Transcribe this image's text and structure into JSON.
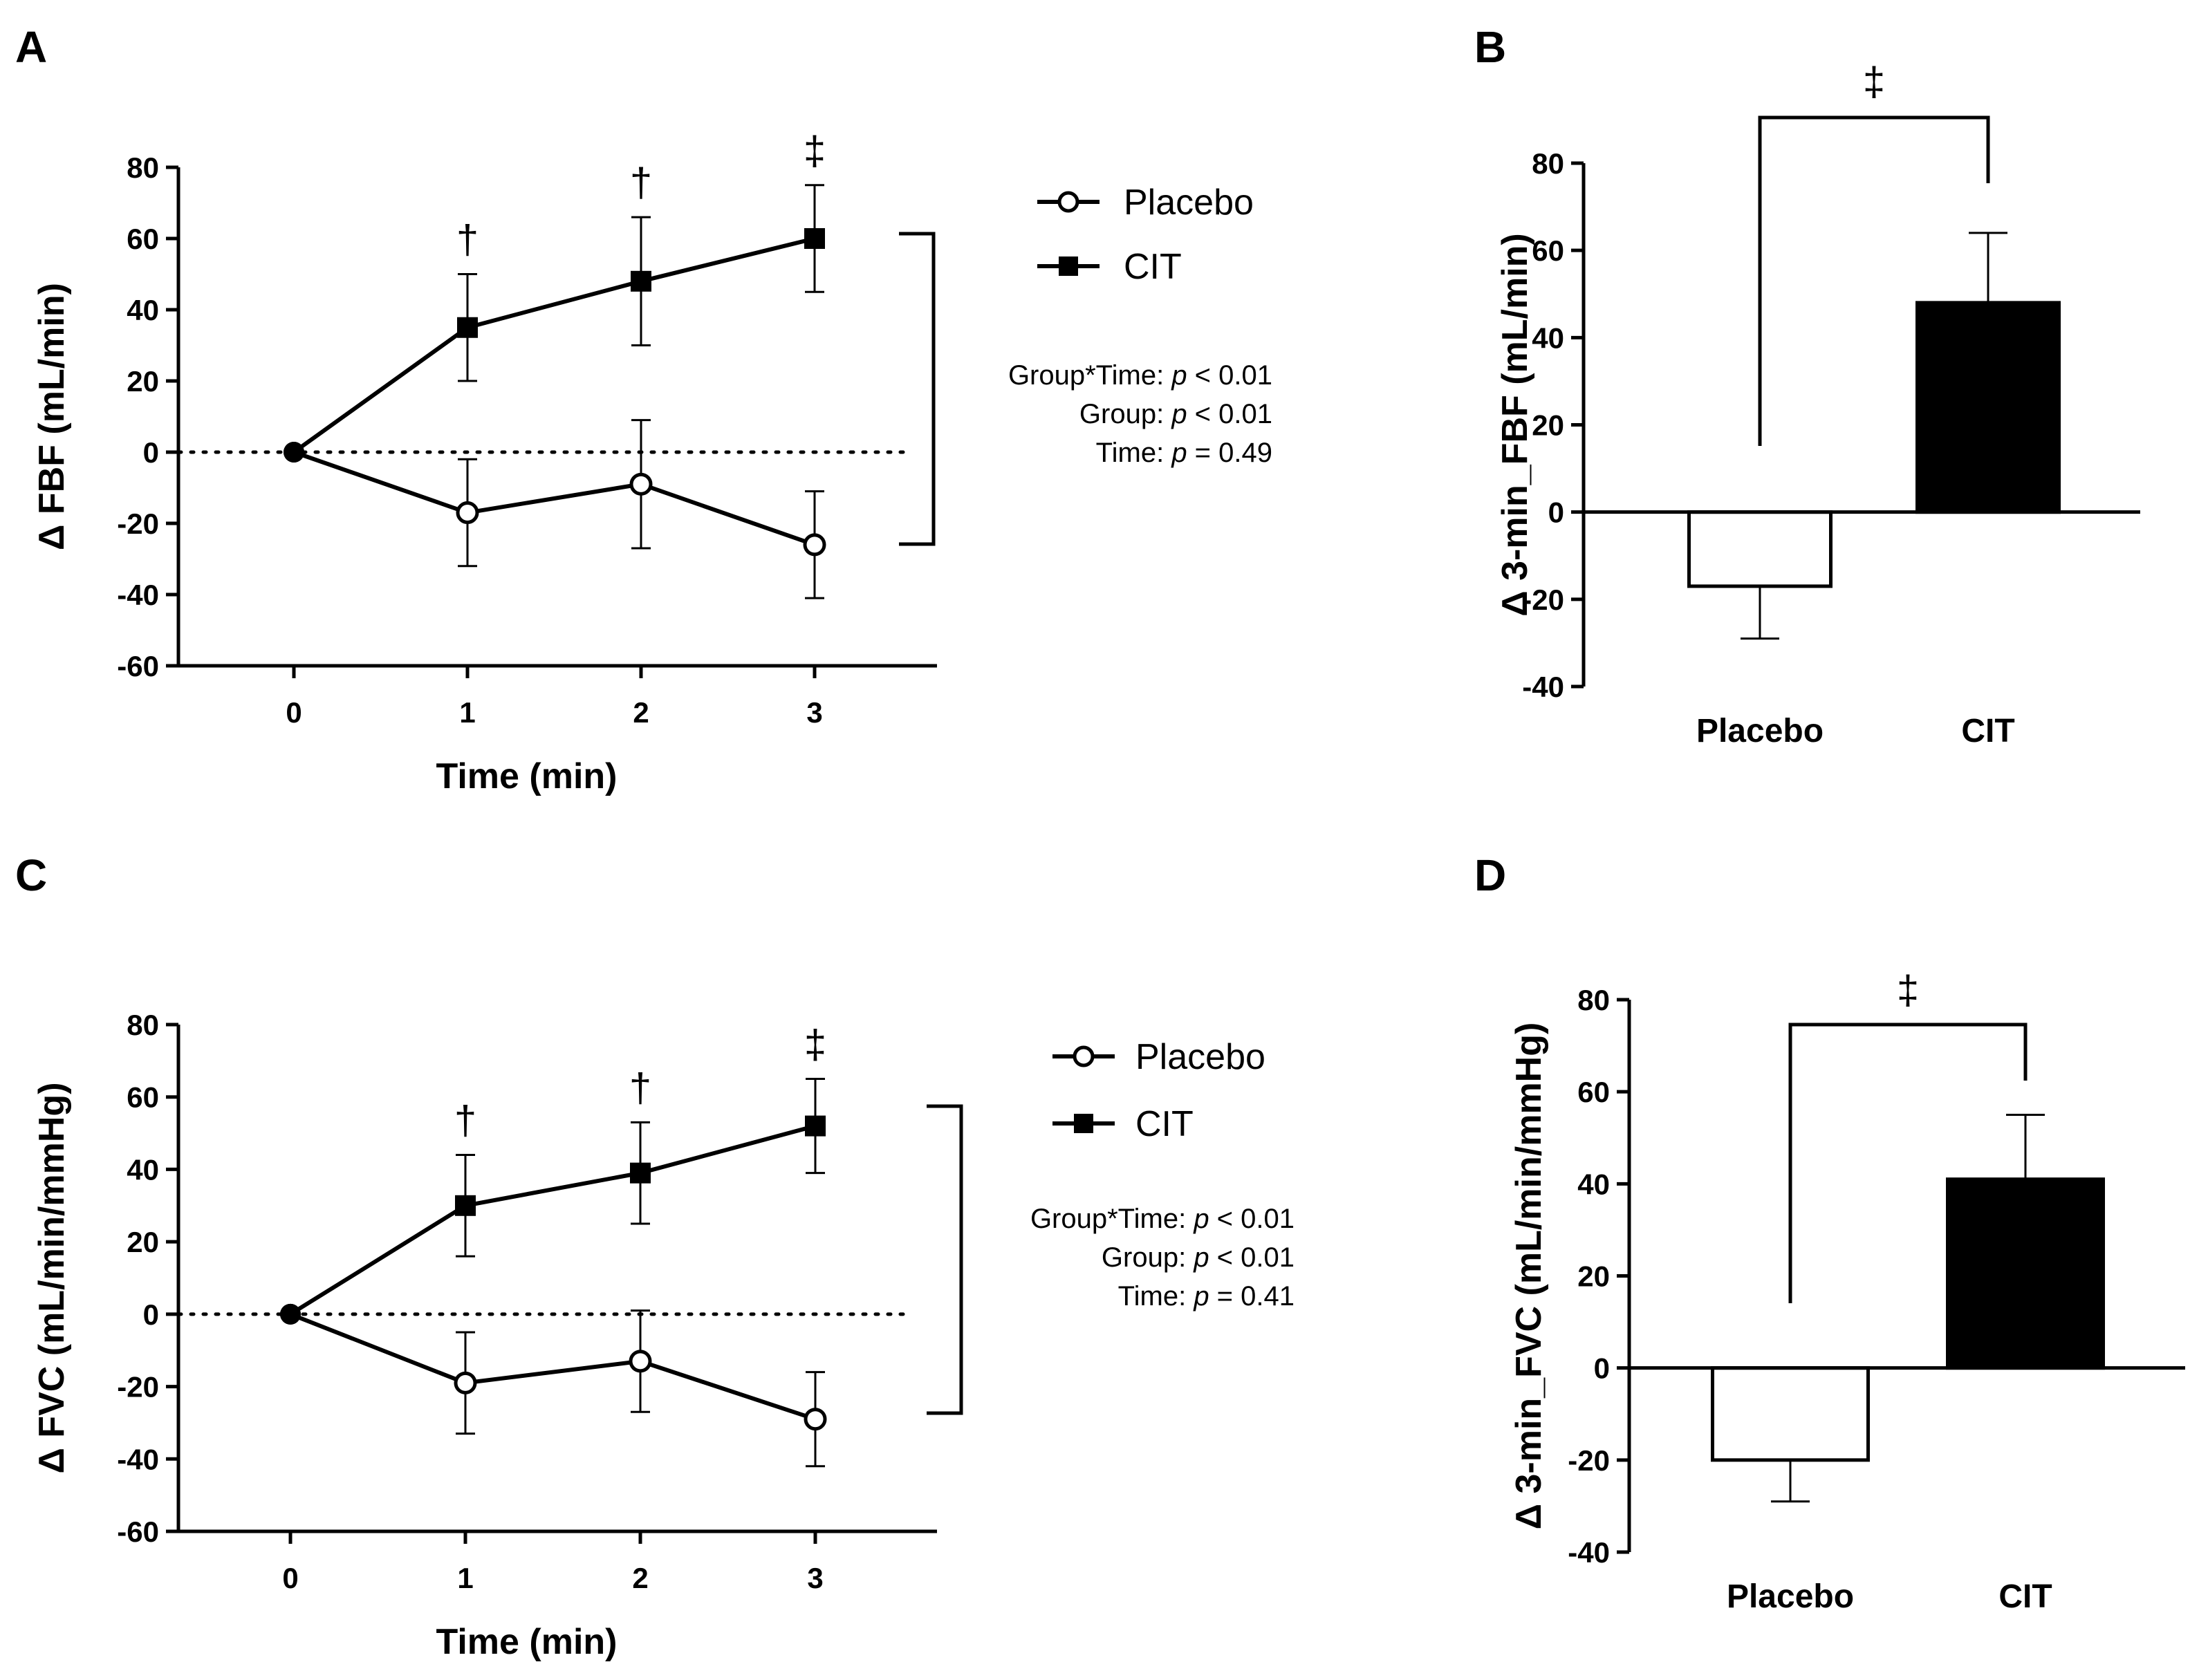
{
  "panels": {
    "A": {
      "letter": "A"
    },
    "B": {
      "letter": "B"
    },
    "C": {
      "letter": "C"
    },
    "D": {
      "letter": "D"
    }
  },
  "legend": {
    "placebo": "Placebo",
    "cit": "CIT"
  },
  "stats": {
    "A": {
      "interaction_label": "Group*Time: ",
      "interaction_p": "p",
      "interaction_value": " < 0.01",
      "group_label": "Group: ",
      "group_p": "p",
      "group_value": " < 0.01",
      "time_label": "Time: ",
      "time_p": "p",
      "time_value": " = 0.49"
    },
    "C": {
      "interaction_label": "Group*Time: ",
      "interaction_p": "p",
      "interaction_value": " < 0.01",
      "group_label": "Group: ",
      "group_p": "p",
      "group_value": " < 0.01",
      "time_label": "Time: ",
      "time_p": "p",
      "time_value": " = 0.41"
    }
  },
  "chart_data": [
    {
      "panel": "A",
      "type": "line",
      "xlabel": "Time (min)",
      "ylabel": "Δ FBF (mL/min)",
      "x": [
        0,
        1,
        2,
        3
      ],
      "xticks": [
        "0",
        "1",
        "2",
        "3"
      ],
      "ylim": [
        -60,
        80
      ],
      "yticks": [
        80,
        60,
        40,
        20,
        0,
        -20,
        -40,
        -60
      ],
      "reference_line": 0,
      "series": [
        {
          "name": "Placebo",
          "marker": "open-circle",
          "values": [
            0,
            -17,
            -9,
            -26
          ],
          "errors": [
            0,
            15,
            18,
            15
          ]
        },
        {
          "name": "CIT",
          "marker": "filled-square",
          "values": [
            0,
            35,
            48,
            60
          ],
          "errors": [
            0,
            15,
            18,
            15
          ]
        }
      ],
      "significance": [
        {
          "x": 1,
          "mark": "†"
        },
        {
          "x": 2,
          "mark": "†"
        },
        {
          "x": 3,
          "mark": "‡"
        }
      ]
    },
    {
      "panel": "B",
      "type": "bar",
      "xlabel": "",
      "ylabel": "Δ 3-min_FBF (mL/min)",
      "categories": [
        "Placebo",
        "CIT"
      ],
      "values": [
        -17,
        48
      ],
      "errors": [
        12,
        16
      ],
      "fill": [
        "#ffffff",
        "#000000"
      ],
      "ylim": [
        -40,
        80
      ],
      "yticks": [
        80,
        60,
        40,
        20,
        0,
        -20,
        -40
      ],
      "significance": {
        "mark": "‡",
        "between": [
          "Placebo",
          "CIT"
        ]
      }
    },
    {
      "panel": "C",
      "type": "line",
      "xlabel": "Time (min)",
      "ylabel": "Δ FVC (mL/min/mmHg)",
      "x": [
        0,
        1,
        2,
        3
      ],
      "xticks": [
        "0",
        "1",
        "2",
        "3"
      ],
      "ylim": [
        -60,
        80
      ],
      "yticks": [
        80,
        60,
        40,
        20,
        0,
        -20,
        -40,
        -60
      ],
      "reference_line": 0,
      "series": [
        {
          "name": "Placebo",
          "marker": "open-circle",
          "values": [
            0,
            -19,
            -13,
            -29
          ],
          "errors": [
            0,
            14,
            14,
            13
          ]
        },
        {
          "name": "CIT",
          "marker": "filled-square",
          "values": [
            0,
            30,
            39,
            52
          ],
          "errors": [
            0,
            14,
            14,
            13
          ]
        }
      ],
      "significance": [
        {
          "x": 1,
          "mark": "†"
        },
        {
          "x": 2,
          "mark": "†"
        },
        {
          "x": 3,
          "mark": "‡"
        }
      ]
    },
    {
      "panel": "D",
      "type": "bar",
      "xlabel": "",
      "ylabel": "Δ 3-min_FVC (mL/min/mmHg)",
      "categories": [
        "Placebo",
        "CIT"
      ],
      "values": [
        -20,
        41
      ],
      "errors": [
        9,
        14
      ],
      "fill": [
        "#ffffff",
        "#000000"
      ],
      "ylim": [
        -40,
        80
      ],
      "yticks": [
        80,
        60,
        40,
        20,
        0,
        -20,
        -40
      ],
      "significance": {
        "mark": "‡",
        "between": [
          "Placebo",
          "CIT"
        ]
      }
    }
  ]
}
